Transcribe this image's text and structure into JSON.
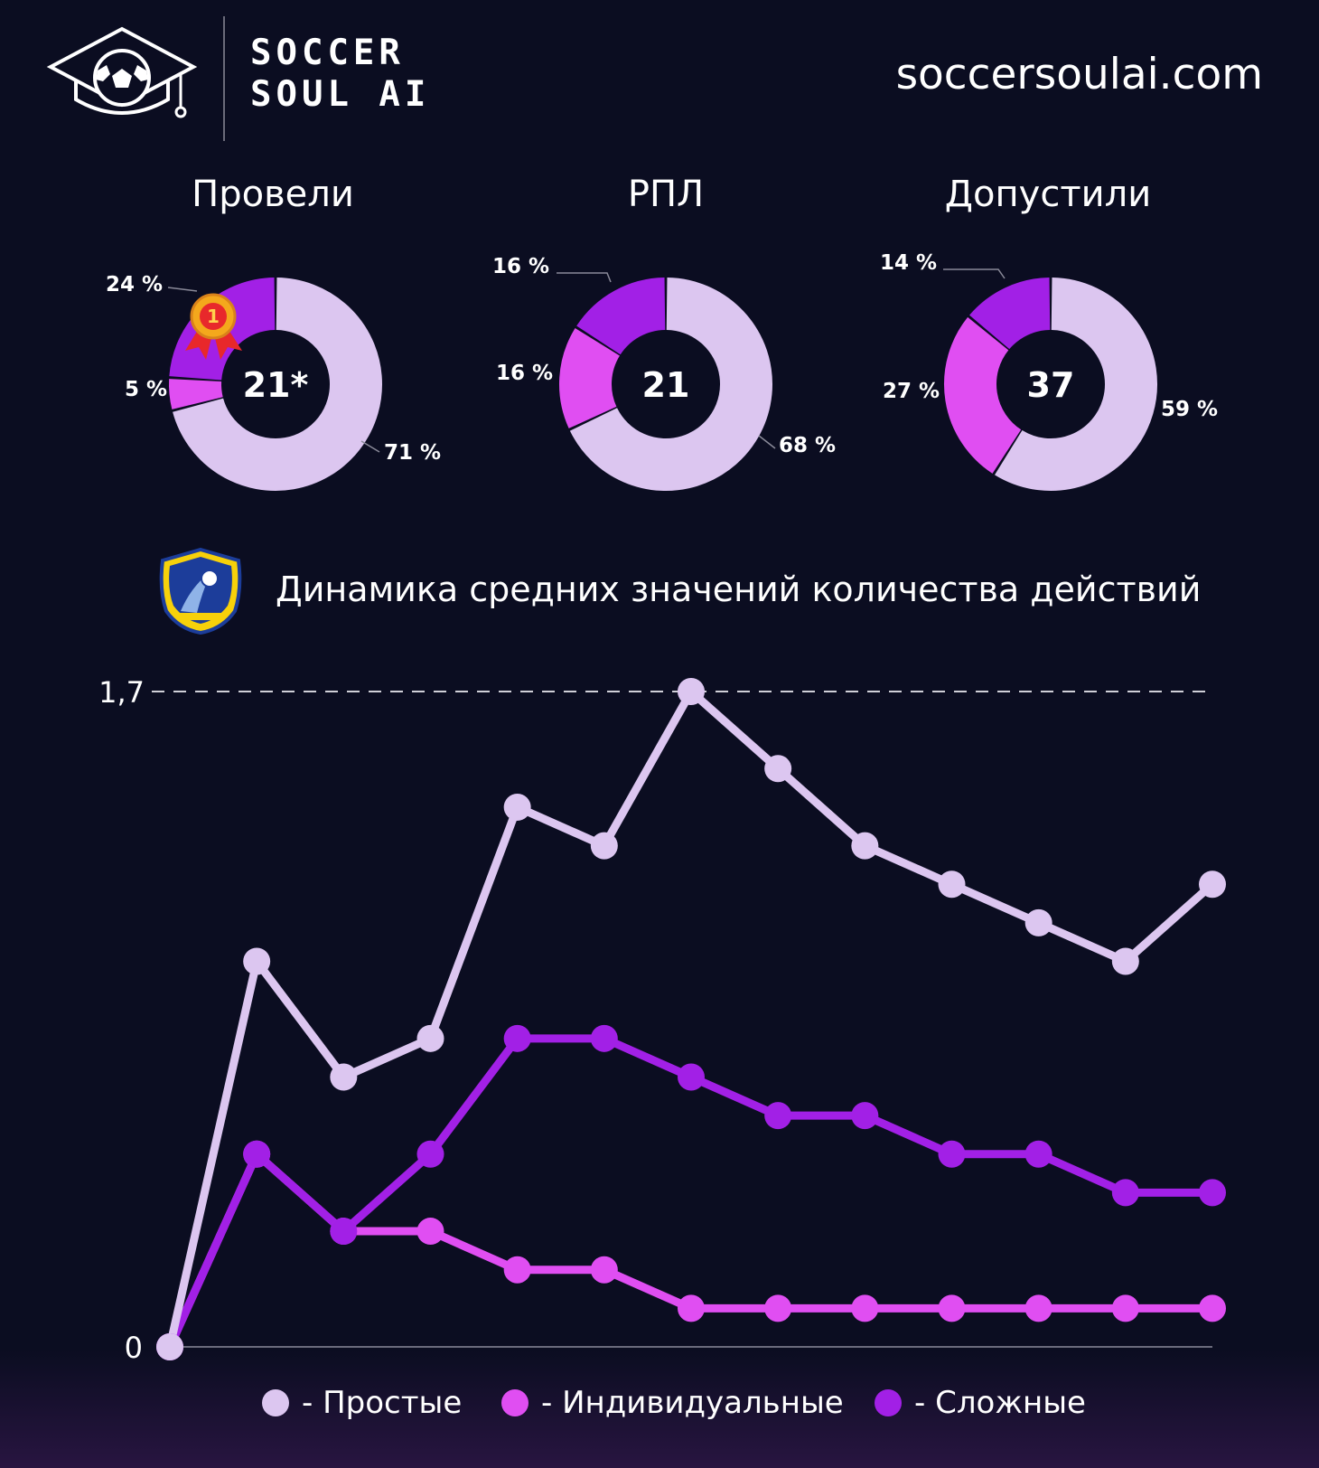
{
  "header": {
    "brand_line1": "SOCCER",
    "brand_line2": "SOUL AI",
    "site": "soccersoulai.com"
  },
  "colors": {
    "background": "#0b0d21",
    "simple": "#dcc6f0",
    "individual": "#e04ef2",
    "complex": "#a220e6"
  },
  "donuts": [
    {
      "title": "Провели",
      "center": "21*",
      "award_icon": "medal-icon",
      "segments": [
        {
          "label": "71 %",
          "value": 71,
          "series": "simple"
        },
        {
          "label": "5 %",
          "value": 5,
          "series": "individual"
        },
        {
          "label": "24 %",
          "value": 24,
          "series": "complex"
        }
      ]
    },
    {
      "title": "РПЛ",
      "center": "21",
      "segments": [
        {
          "label": "68 %",
          "value": 68,
          "series": "simple"
        },
        {
          "label": "16 %",
          "value": 16,
          "series": "individual"
        },
        {
          "label": "16 %",
          "value": 16,
          "series": "complex"
        }
      ]
    },
    {
      "title": "Допустили",
      "center": "37",
      "segments": [
        {
          "label": "59 %",
          "value": 59,
          "series": "simple"
        },
        {
          "label": "27 %",
          "value": 27,
          "series": "individual"
        },
        {
          "label": "14 %",
          "value": 14,
          "series": "complex"
        }
      ]
    }
  ],
  "chart_title": "Динамика средних значений количества действий",
  "club_badge_icon": "fc-rostov-badge-icon",
  "chart_data": {
    "type": "line",
    "x": [
      0,
      1,
      2,
      3,
      4,
      5,
      6,
      7,
      8,
      9,
      10,
      11,
      12
    ],
    "y_ticks": [
      "0",
      "1,7"
    ],
    "ylim": [
      0,
      1.7
    ],
    "reference_line": 1.7,
    "series": [
      {
        "name": "Простые",
        "color": "#dcc6f0",
        "values": [
          0,
          1.0,
          0.7,
          0.8,
          1.4,
          1.3,
          1.7,
          1.5,
          1.3,
          1.2,
          1.1,
          1.0,
          1.2
        ]
      },
      {
        "name": "Индивидуальные",
        "color": "#e04ef2",
        "values": [
          0,
          0.5,
          0.3,
          0.3,
          0.2,
          0.2,
          0.1,
          0.1,
          0.1,
          0.1,
          0.1,
          0.1,
          0.1
        ]
      },
      {
        "name": "Сложные",
        "color": "#a220e6",
        "values": [
          0,
          0.5,
          0.3,
          0.5,
          0.8,
          0.8,
          0.7,
          0.6,
          0.6,
          0.5,
          0.5,
          0.4,
          0.4
        ]
      }
    ],
    "legend": [
      {
        "label": "- Простые",
        "color": "#dcc6f0"
      },
      {
        "label": "- Индивидуальные",
        "color": "#e04ef2"
      },
      {
        "label": "- Сложные",
        "color": "#a220e6"
      }
    ],
    "legend_position": "bottom"
  }
}
